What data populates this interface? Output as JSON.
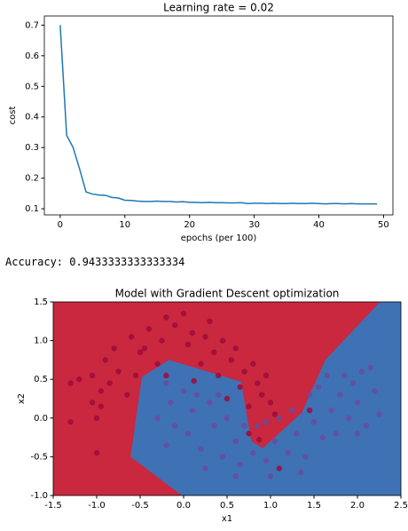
{
  "chart_data": [
    {
      "type": "line",
      "title": "Learning rate = 0.02",
      "x_label": "epochs (per 100)",
      "y_label": "cost",
      "x": [
        0,
        1,
        2,
        3,
        4,
        5,
        6,
        7,
        8,
        9,
        10,
        11,
        12,
        13,
        14,
        15,
        16,
        17,
        18,
        19,
        20,
        21,
        22,
        23,
        24,
        25,
        26,
        27,
        28,
        29,
        30,
        31,
        32,
        33,
        34,
        35,
        36,
        37,
        38,
        39,
        40,
        41,
        42,
        43,
        44,
        45,
        46,
        47,
        48,
        49
      ],
      "values": [
        0.7,
        0.34,
        0.3,
        0.23,
        0.155,
        0.148,
        0.145,
        0.144,
        0.137,
        0.135,
        0.128,
        0.127,
        0.125,
        0.124,
        0.124,
        0.125,
        0.124,
        0.124,
        0.122,
        0.123,
        0.121,
        0.121,
        0.12,
        0.121,
        0.12,
        0.12,
        0.119,
        0.119,
        0.12,
        0.117,
        0.118,
        0.118,
        0.117,
        0.118,
        0.117,
        0.117,
        0.118,
        0.117,
        0.117,
        0.118,
        0.117,
        0.116,
        0.117,
        0.117,
        0.116,
        0.117,
        0.116,
        0.116,
        0.116,
        0.116
      ],
      "color": "#1f77b4",
      "xlim": [
        -2.45,
        51.45
      ],
      "xticks": [
        0,
        10,
        20,
        30,
        40,
        50
      ],
      "ylim": [
        0.08,
        0.73
      ],
      "yticks": [
        0.1,
        0.2,
        0.3,
        0.4,
        0.5,
        0.6,
        0.7
      ]
    },
    {
      "type": "scatter",
      "title": "Model with Gradient Descent optimization",
      "x_label": "x1",
      "y_label": "x2",
      "background_color": "#c9283e",
      "decision_region": {
        "color": "#3e72b4",
        "x": [
          -0.02,
          -0.61,
          -0.48,
          -0.17,
          0.66,
          0.78,
          0.91,
          1.36,
          1.63,
          2.26
        ],
        "values": [
          -1.0,
          -0.5,
          0.53,
          0.75,
          0.47,
          -0.3,
          -0.39,
          0.07,
          0.75,
          1.5
        ]
      },
      "series": [
        {
          "color": "#9e0b3c",
          "x": [
            -1.05,
            -0.95,
            -1.2,
            -0.9,
            -0.8,
            -0.6,
            -0.5,
            -0.4,
            -0.25,
            -0.1,
            0.05,
            0.1,
            0.25,
            0.35,
            0.45,
            0.55,
            0.6,
            0.7,
            0.8,
            0.85,
            0.9,
            0.95,
            1.0,
            1.05,
            -1.3,
            -1.05,
            -0.75,
            -0.65,
            -0.3,
            -0.2,
            0.0,
            0.3,
            0.4,
            0.2,
            -0.55,
            -0.85,
            -1.0,
            -1.3,
            -1.0,
            -0.95,
            0.65,
            0.5,
            0.75,
            0.87,
            0.12,
            -0.2,
            1.1,
            1.45,
            0.75,
            -0.45
          ],
          "values": [
            0.55,
            0.35,
            0.5,
            0.75,
            0.9,
            1.05,
            0.85,
            1.15,
            1.0,
            1.2,
            0.95,
            1.1,
            1.05,
            0.85,
            1.0,
            0.75,
            0.9,
            0.6,
            0.7,
            0.45,
            0.3,
            0.55,
            0.2,
            0.05,
            0.45,
            0.2,
            0.6,
            0.3,
            0.7,
            1.3,
            1.35,
            1.25,
            0.55,
            0.7,
            0.55,
            0.45,
            0.0,
            -0.05,
            -0.45,
            0.15,
            0.4,
            0.25,
            -0.2,
            -0.28,
            0.48,
            0.55,
            -0.65,
            0.1,
            0.15,
            0.9
          ]
        },
        {
          "color": "#6a4a9e",
          "x": [
            0.0,
            0.1,
            0.05,
            -0.15,
            -0.3,
            -0.2,
            0.2,
            0.35,
            0.45,
            0.6,
            0.65,
            0.8,
            0.95,
            1.05,
            1.2,
            1.3,
            1.4,
            1.5,
            1.6,
            1.7,
            1.8,
            1.9,
            1.95,
            2.0,
            2.05,
            2.1,
            2.2,
            2.25,
            1.85,
            1.75,
            1.55,
            1.65,
            1.25,
            0.3,
            0.5,
            0.85,
            0.25,
            0.6,
            1.0,
            1.35,
            -0.1,
            0.15,
            0.4,
            2.0,
            2.15,
            -0.2,
            0.95,
            1.1,
            1.45,
            0.7
          ],
          "values": [
            0.35,
            0.1,
            -0.2,
            0.2,
            0.0,
            -0.35,
            -0.4,
            -0.1,
            -0.5,
            -0.3,
            -0.6,
            -0.45,
            -0.55,
            -0.3,
            -0.45,
            -0.2,
            -0.5,
            -0.05,
            -0.25,
            0.1,
            0.3,
            0.0,
            0.45,
            0.2,
            0.6,
            -0.1,
            0.35,
            0.05,
            0.55,
            -0.2,
            0.4,
            0.55,
            0.1,
            0.2,
            0.0,
            -0.1,
            -0.65,
            -0.75,
            -0.75,
            -0.7,
            -0.1,
            0.3,
            0.3,
            -0.2,
            0.65,
            0.45,
            -0.05,
            0.0,
            0.3,
            -0.1
          ]
        }
      ],
      "xlim": [
        -1.5,
        2.5
      ],
      "xticks": [
        -1.5,
        {
          "value": -1.0,
          "label": "-1.0"
        },
        -0.5,
        {
          "value": 0.0,
          "label": "0.0"
        },
        0.5,
        {
          "value": 1.0,
          "label": "1.0"
        },
        1.5,
        {
          "value": 2.0,
          "label": "2.0"
        },
        2.5
      ],
      "ylim": [
        -1.0,
        1.5
      ],
      "yticks": [
        {
          "value": -1.0,
          "label": "-1.0"
        },
        -0.5,
        {
          "value": 0.0,
          "label": "0.0"
        },
        0.5,
        {
          "value": 1.0,
          "label": "1.0"
        },
        1.5
      ]
    }
  ],
  "output_text": "Accuracy: 0.9433333333333334"
}
